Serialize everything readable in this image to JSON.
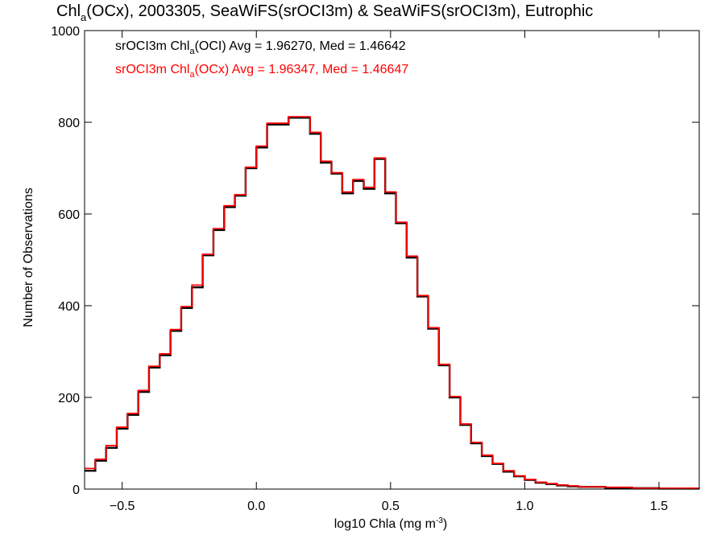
{
  "chart_data": {
    "type": "line",
    "style": "step",
    "title_parts": {
      "pre": "Chl",
      "sub": "a",
      "post": "(OCx), 2003305, SeaWiFS(srOCI3m) & SeaWiFS(srOCI3m), Eutrophic"
    },
    "xlabel_parts": {
      "pre": "log10 Chla (mg m",
      "sup": "-3",
      "post": ")"
    },
    "ylabel": "Number of Observations",
    "xlim": [
      -0.64,
      1.65
    ],
    "ylim": [
      0,
      1000
    ],
    "xticks": [
      -0.5,
      0.0,
      0.5,
      1.0,
      1.5
    ],
    "xtick_labels": [
      "−0.5",
      "0.0",
      "0.5",
      "1.0",
      "1.5"
    ],
    "yticks": [
      0,
      200,
      400,
      600,
      800,
      1000
    ],
    "ytick_labels": [
      "0",
      "200",
      "400",
      "600",
      "800",
      "1000"
    ],
    "grid": false,
    "legend_position": "top-left",
    "series": [
      {
        "name_parts": {
          "pre": "srOCI3m Chl",
          "sub": "a",
          "post": "(OCI) Avg = 1.96270, Med = 1.46642"
        },
        "color": "#000000",
        "x": [
          -0.64,
          -0.6,
          -0.56,
          -0.52,
          -0.48,
          -0.44,
          -0.4,
          -0.36,
          -0.32,
          -0.28,
          -0.24,
          -0.2,
          -0.16,
          -0.12,
          -0.08,
          -0.04,
          0.0,
          0.04,
          0.08,
          0.12,
          0.16,
          0.2,
          0.24,
          0.28,
          0.32,
          0.36,
          0.4,
          0.44,
          0.48,
          0.52,
          0.56,
          0.6,
          0.64,
          0.68,
          0.72,
          0.76,
          0.8,
          0.84,
          0.88,
          0.92,
          0.96,
          1.0,
          1.04,
          1.08,
          1.12,
          1.16,
          1.2,
          1.3,
          1.4,
          1.5,
          1.65
        ],
        "y": [
          40,
          62,
          90,
          132,
          162,
          212,
          265,
          292,
          345,
          395,
          440,
          510,
          565,
          615,
          640,
          700,
          745,
          795,
          795,
          810,
          810,
          775,
          712,
          688,
          645,
          672,
          655,
          720,
          645,
          580,
          505,
          420,
          350,
          270,
          200,
          140,
          100,
          72,
          55,
          38,
          28,
          20,
          14,
          11,
          8,
          6,
          5,
          3,
          2,
          1,
          1
        ]
      },
      {
        "name_parts": {
          "pre": "srOCI3m Chl",
          "sub": "a",
          "post": "(OCx) Avg = 1.96347, Med = 1.46647"
        },
        "color": "#ff0000",
        "x": [
          -0.64,
          -0.6,
          -0.56,
          -0.52,
          -0.48,
          -0.44,
          -0.4,
          -0.36,
          -0.32,
          -0.28,
          -0.24,
          -0.2,
          -0.16,
          -0.12,
          -0.08,
          -0.04,
          0.0,
          0.04,
          0.08,
          0.12,
          0.16,
          0.2,
          0.24,
          0.28,
          0.32,
          0.36,
          0.4,
          0.44,
          0.48,
          0.52,
          0.56,
          0.6,
          0.64,
          0.68,
          0.72,
          0.76,
          0.8,
          0.84,
          0.88,
          0.92,
          0.96,
          1.0,
          1.04,
          1.08,
          1.12,
          1.16,
          1.2,
          1.3,
          1.4,
          1.5,
          1.65
        ],
        "y": [
          45,
          65,
          95,
          135,
          165,
          215,
          268,
          295,
          348,
          398,
          445,
          512,
          568,
          618,
          642,
          702,
          748,
          798,
          798,
          812,
          812,
          778,
          715,
          690,
          648,
          675,
          658,
          722,
          648,
          582,
          508,
          422,
          352,
          272,
          202,
          142,
          102,
          74,
          56,
          40,
          29,
          21,
          15,
          12,
          9,
          7,
          5,
          4,
          2,
          2,
          1
        ]
      }
    ]
  }
}
